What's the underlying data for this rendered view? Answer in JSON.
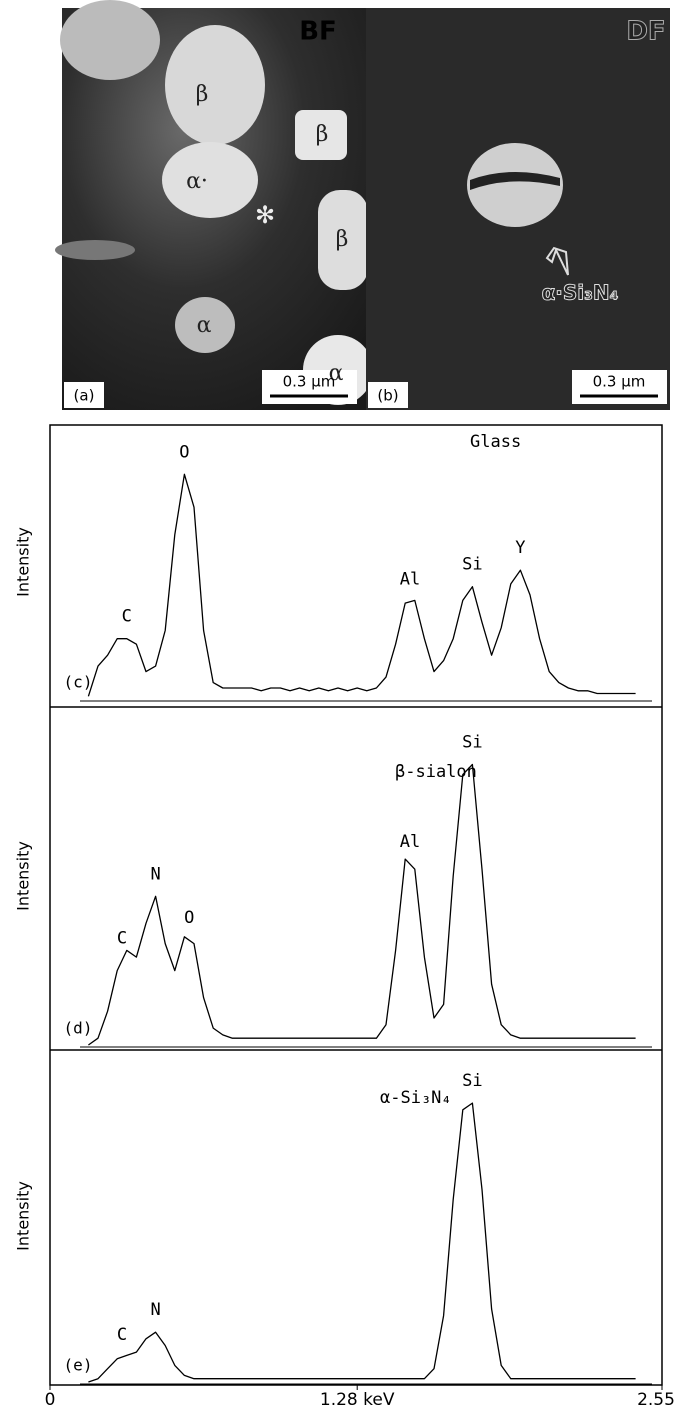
{
  "figure": {
    "micrographs": [
      {
        "label": "(a)",
        "mode": "BF",
        "scale": "0.3 μm",
        "phases": [
          "β",
          "β",
          "β",
          "α·",
          "α",
          "α"
        ],
        "marker": "✻"
      },
      {
        "label": "(b)",
        "mode": "DF",
        "scale": "0.3 μm",
        "phase": "α·Si₃N₄"
      }
    ]
  },
  "chart_data": [
    {
      "type": "line",
      "title": "Glass",
      "panel_label": "(c)",
      "y_label": "Intensity",
      "xlim": [
        0,
        2.55
      ],
      "ylim": [
        0,
        100
      ],
      "color": "#000000",
      "x": [
        0.16,
        0.2,
        0.24,
        0.28,
        0.32,
        0.36,
        0.4,
        0.44,
        0.48,
        0.52,
        0.56,
        0.6,
        0.64,
        0.68,
        0.72,
        0.76,
        0.8,
        0.84,
        0.88,
        0.92,
        0.96,
        1.0,
        1.04,
        1.08,
        1.12,
        1.16,
        1.2,
        1.24,
        1.28,
        1.32,
        1.36,
        1.4,
        1.44,
        1.48,
        1.52,
        1.56,
        1.6,
        1.64,
        1.68,
        1.72,
        1.76,
        1.8,
        1.84,
        1.88,
        1.92,
        1.96,
        2.0,
        2.04,
        2.08,
        2.12,
        2.16,
        2.2,
        2.24,
        2.28,
        2.32,
        2.36,
        2.4,
        2.44
      ],
      "series": [
        {
          "values": [
            1,
            12,
            16,
            22,
            22,
            20,
            10,
            12,
            25,
            60,
            82,
            70,
            25,
            6,
            4,
            4,
            4,
            4,
            3,
            4,
            4,
            3,
            4,
            3,
            4,
            3,
            4,
            3,
            4,
            3,
            4,
            8,
            20,
            35,
            36,
            22,
            10,
            14,
            22,
            36,
            41,
            28,
            16,
            26,
            42,
            47,
            38,
            22,
            10,
            6,
            4,
            3,
            3,
            2,
            2,
            2,
            2,
            2
          ]
        }
      ],
      "annotations": [
        {
          "text": "C",
          "x": 0.32
        },
        {
          "text": "O",
          "x": 0.56
        },
        {
          "text": "Al",
          "x": 1.5
        },
        {
          "text": "Si",
          "x": 1.76
        },
        {
          "text": "Y",
          "x": 1.96
        }
      ]
    },
    {
      "type": "line",
      "title": "β-sialon",
      "panel_label": "(d)",
      "y_label": "Intensity",
      "xlim": [
        0,
        2.55
      ],
      "ylim": [
        0,
        100
      ],
      "color": "#000000",
      "x": [
        0.16,
        0.2,
        0.24,
        0.28,
        0.32,
        0.36,
        0.4,
        0.44,
        0.48,
        0.52,
        0.56,
        0.6,
        0.64,
        0.68,
        0.72,
        0.76,
        0.8,
        0.84,
        0.88,
        0.92,
        0.96,
        1.0,
        1.04,
        1.08,
        1.12,
        1.16,
        1.2,
        1.24,
        1.28,
        1.32,
        1.36,
        1.4,
        1.44,
        1.48,
        1.52,
        1.56,
        1.6,
        1.64,
        1.68,
        1.72,
        1.76,
        1.8,
        1.84,
        1.88,
        1.92,
        1.96,
        2.0,
        2.04,
        2.08,
        2.12,
        2.16,
        2.2,
        2.24,
        2.28,
        2.32,
        2.36,
        2.4,
        2.44
      ],
      "series": [
        {
          "values": [
            0,
            2,
            10,
            22,
            28,
            26,
            36,
            44,
            30,
            22,
            32,
            30,
            14,
            5,
            3,
            2,
            2,
            2,
            2,
            2,
            2,
            2,
            2,
            2,
            2,
            2,
            2,
            2,
            2,
            2,
            2,
            6,
            28,
            55,
            52,
            26,
            8,
            12,
            50,
            80,
            83,
            52,
            18,
            6,
            3,
            2,
            2,
            2,
            2,
            2,
            2,
            2,
            2,
            2,
            2,
            2,
            2,
            2
          ]
        }
      ],
      "annotations": [
        {
          "text": "C",
          "x": 0.3
        },
        {
          "text": "N",
          "x": 0.44
        },
        {
          "text": "O",
          "x": 0.58
        },
        {
          "text": "Al",
          "x": 1.5
        },
        {
          "text": "Si",
          "x": 1.76
        }
      ]
    },
    {
      "type": "line",
      "title": "α-Si₃N₄",
      "panel_label": "(e)",
      "y_label": "Intensity",
      "xlim": [
        0,
        2.55
      ],
      "ylim": [
        0,
        100
      ],
      "color": "#000000",
      "x": [
        0.16,
        0.2,
        0.24,
        0.28,
        0.32,
        0.36,
        0.4,
        0.44,
        0.48,
        0.52,
        0.56,
        0.6,
        0.64,
        0.68,
        0.72,
        0.76,
        0.8,
        0.84,
        0.88,
        0.92,
        0.96,
        1.0,
        1.04,
        1.08,
        1.12,
        1.16,
        1.2,
        1.24,
        1.28,
        1.32,
        1.36,
        1.4,
        1.44,
        1.48,
        1.52,
        1.56,
        1.6,
        1.64,
        1.68,
        1.72,
        1.76,
        1.8,
        1.84,
        1.88,
        1.92,
        1.96,
        2.0,
        2.04,
        2.08,
        2.12,
        2.16,
        2.2,
        2.24,
        2.28,
        2.32,
        2.36,
        2.4,
        2.44
      ],
      "series": [
        {
          "values": [
            0,
            1,
            4,
            7,
            8,
            9,
            13,
            15,
            11,
            5,
            2,
            1,
            1,
            1,
            1,
            1,
            1,
            1,
            1,
            1,
            1,
            1,
            1,
            1,
            1,
            1,
            1,
            1,
            1,
            1,
            1,
            1,
            1,
            1,
            1,
            1,
            4,
            20,
            55,
            82,
            84,
            58,
            22,
            5,
            1,
            1,
            1,
            1,
            1,
            1,
            1,
            1,
            1,
            1,
            1,
            1,
            1,
            1
          ]
        }
      ],
      "annotations": [
        {
          "text": "C",
          "x": 0.3
        },
        {
          "text": "N",
          "x": 0.44
        },
        {
          "text": "Si",
          "x": 1.76
        }
      ],
      "xticks": [
        0,
        {
          "value": 1.28,
          "label": "1.28 keV"
        },
        2.55
      ]
    }
  ]
}
